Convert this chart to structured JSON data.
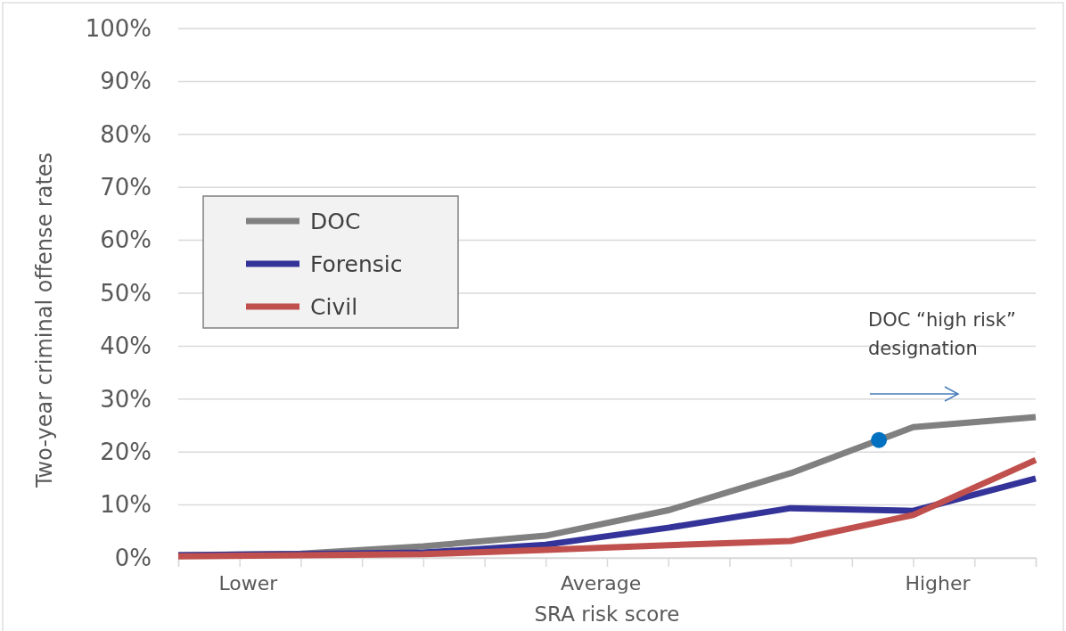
{
  "chart_data": {
    "type": "line",
    "xlabel": "SRA risk score",
    "ylabel": "Two-year criminal offense rates",
    "categories": [
      null,
      null,
      null,
      null,
      null,
      null,
      null,
      null
    ],
    "ylim": [
      0,
      100
    ],
    "yticks": [
      {
        "value": 0,
        "label": "0%"
      },
      {
        "value": 10,
        "label": "10%"
      },
      {
        "value": 20,
        "label": "20%"
      },
      {
        "value": 30,
        "label": "30%"
      },
      {
        "value": 40,
        "label": "40%"
      },
      {
        "value": 50,
        "label": "50%"
      },
      {
        "value": 60,
        "label": "60%"
      },
      {
        "value": 70,
        "label": "70%"
      },
      {
        "value": 80,
        "label": "80%"
      },
      {
        "value": 90,
        "label": "90%"
      },
      {
        "value": 100,
        "label": "100%"
      }
    ],
    "grid": "y",
    "legend": "left",
    "line_style": "solid",
    "series": [
      {
        "name": "DOC",
        "color": "#808080",
        "values": [
          0.5,
          0.8,
          2.2,
          4.2,
          9,
          16,
          24.7,
          26.6
        ]
      },
      {
        "name": "Forensic",
        "color": "#333399",
        "values": [
          0.5,
          0.7,
          1,
          2.5,
          5.7,
          9.4,
          8.9,
          15
        ]
      },
      {
        "name": "Civil",
        "color": "#c0504d",
        "values": [
          0.3,
          0.5,
          0.7,
          1.5,
          2.4,
          3.2,
          8.1,
          18.5
        ]
      }
    ],
    "annotations": [
      "Lower",
      "Average",
      "Higher",
      "DOC “high risk” designation"
    ]
  }
}
